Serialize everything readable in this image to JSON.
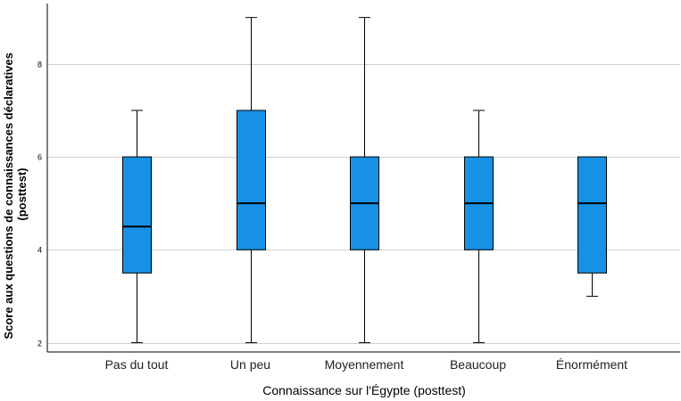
{
  "chart_data": {
    "type": "boxplot",
    "xlabel": "Connaissance sur l'Égypte (posttest)",
    "ylabel_lines": [
      "Score aux questions de connaissances déclaratives",
      "(posttest)"
    ],
    "ylim": [
      1.8,
      9.3
    ],
    "yticks": [
      2,
      4,
      6,
      8
    ],
    "grid": true,
    "box_color": "#1691e6",
    "categories": [
      "Pas du tout",
      "Un peu",
      "Moyennement",
      "Beaucoup",
      "Énormément"
    ],
    "boxes": [
      {
        "min": 2,
        "q1": 3.5,
        "median": 4.5,
        "q3": 6,
        "max": 7
      },
      {
        "min": 2,
        "q1": 4,
        "median": 5,
        "q3": 7,
        "max": 9
      },
      {
        "min": 2,
        "q1": 4,
        "median": 5,
        "q3": 6,
        "max": 9
      },
      {
        "min": 2,
        "q1": 4,
        "median": 5,
        "q3": 6,
        "max": 7
      },
      {
        "min": 3,
        "q1": 3.5,
        "median": 5,
        "q3": 6,
        "max": 6
      }
    ]
  }
}
